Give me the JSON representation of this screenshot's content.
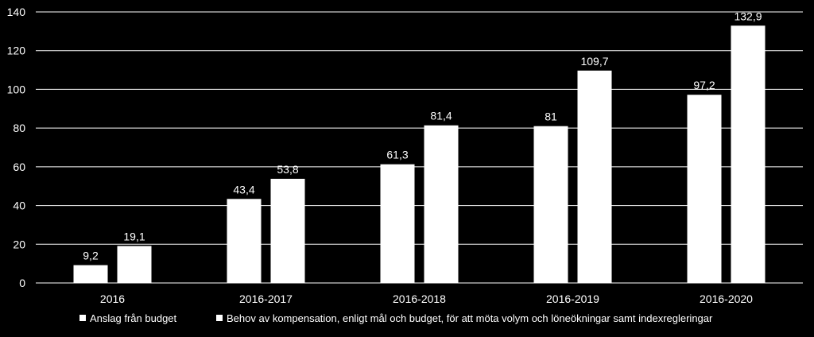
{
  "chart_data": {
    "type": "bar",
    "categories": [
      "2016",
      "2016-2017",
      "2016-2018",
      "2016-2019",
      "2016-2020"
    ],
    "series": [
      {
        "name": "Anslag från budget",
        "values": [
          9.2,
          43.4,
          61.3,
          81,
          97.2
        ],
        "labels": [
          "9,2",
          "43,4",
          "61,3",
          "81",
          "97,2"
        ],
        "color": "#ffffff"
      },
      {
        "name": "Behov av kompensation, enligt mål och budget, för att möta volym och löneökningar samt indexregleringar",
        "values": [
          19.1,
          53.8,
          81.4,
          109.7,
          132.9
        ],
        "labels": [
          "19,1",
          "53,8",
          "81,4",
          "109,7",
          "132,9"
        ],
        "color": "#ffffff"
      }
    ],
    "ylim": [
      0,
      140
    ],
    "yticks": [
      0,
      20,
      40,
      60,
      80,
      100,
      120,
      140
    ],
    "grid": true,
    "legend": "bottom",
    "background": "#000000"
  }
}
